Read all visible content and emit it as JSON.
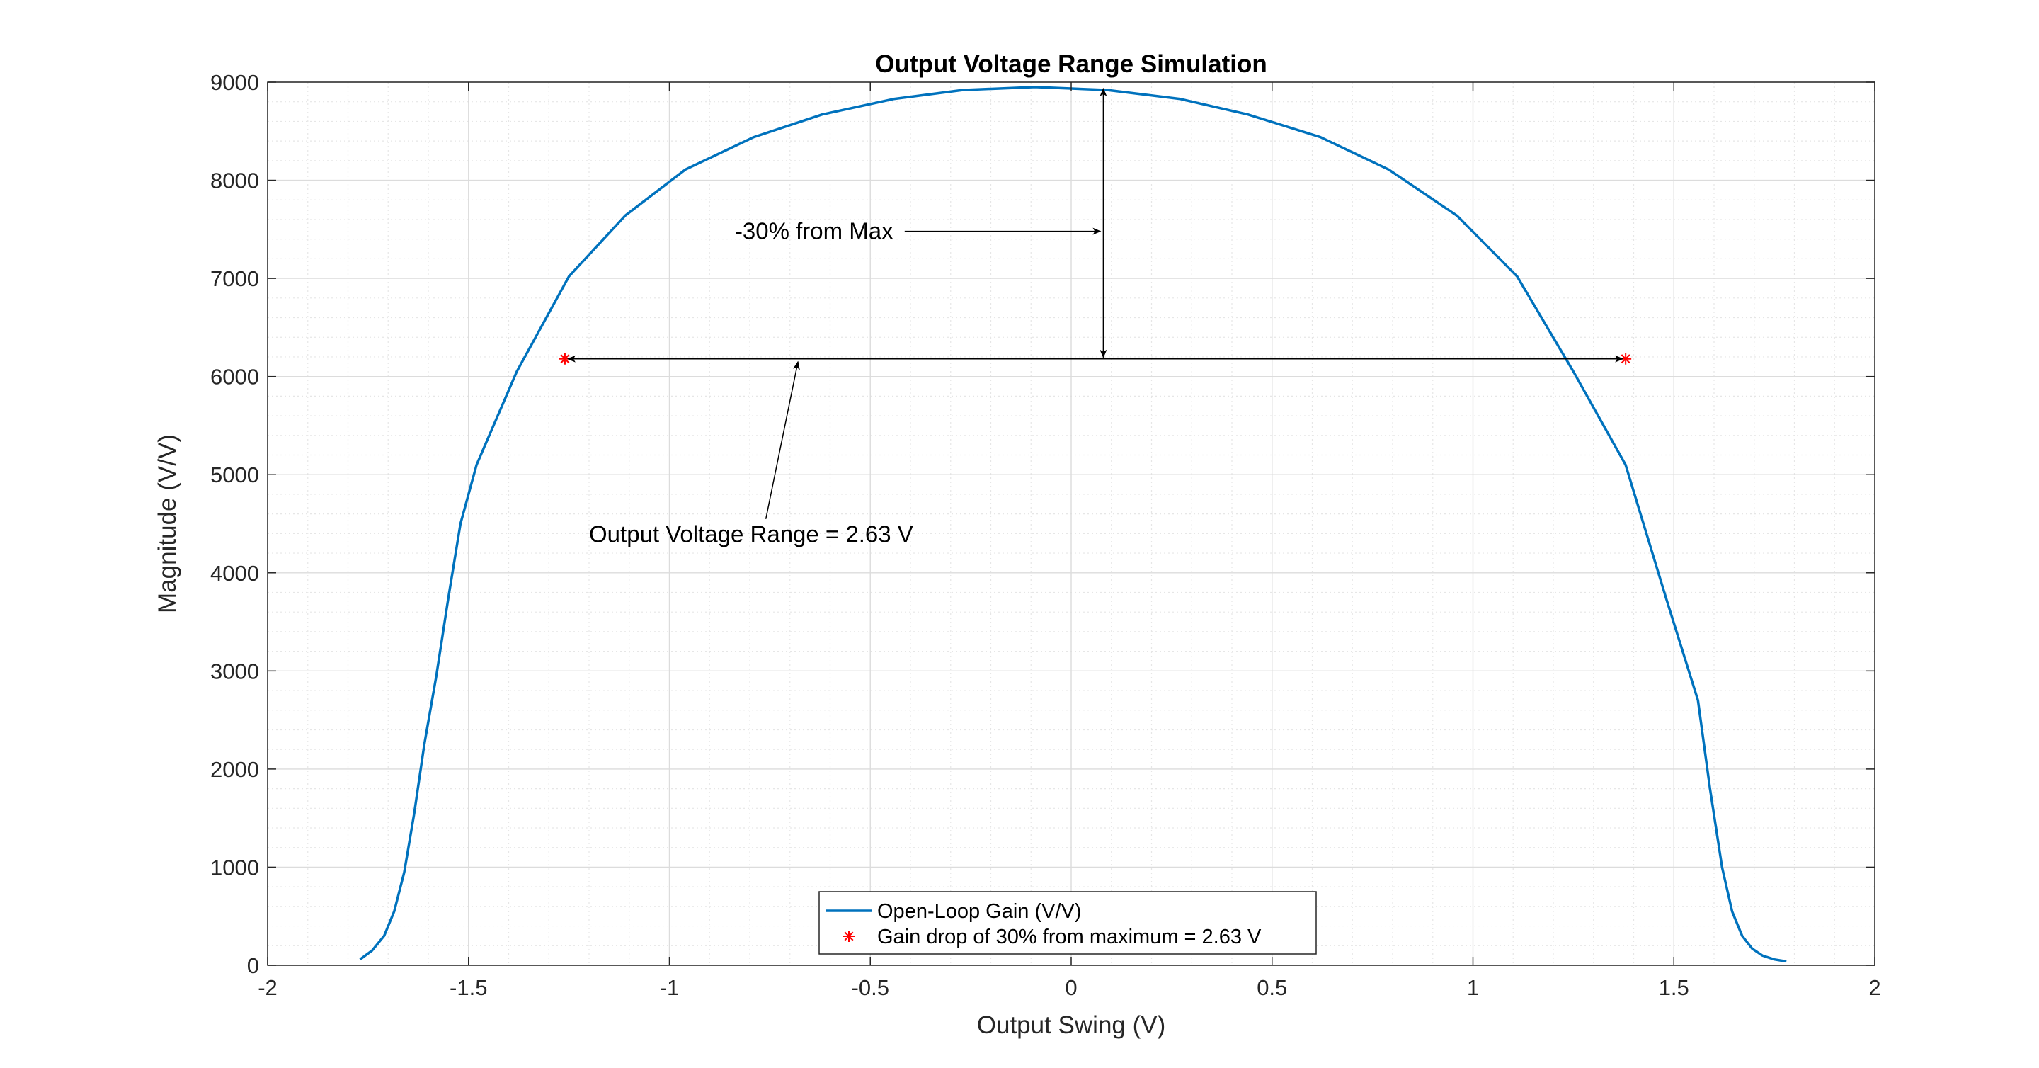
{
  "chart_data": {
    "type": "line",
    "title": "Output Voltage Range Simulation",
    "xlabel": "Output Swing (V)",
    "ylabel": "Magnitude (V/V)",
    "xlim": [
      -2,
      2
    ],
    "ylim": [
      0,
      9000
    ],
    "xticks": [
      -2,
      -1.5,
      -1,
      -0.5,
      0,
      0.5,
      1,
      1.5,
      2
    ],
    "xtick_labels": [
      "-2",
      "-1.5",
      "-1",
      "-0.5",
      "0",
      "0.5",
      "1",
      "1.5",
      "2"
    ],
    "yticks": [
      0,
      1000,
      2000,
      3000,
      4000,
      5000,
      6000,
      7000,
      8000,
      9000
    ],
    "ytick_labels": [
      "0",
      "1000",
      "2000",
      "3000",
      "4000",
      "5000",
      "6000",
      "7000",
      "8000",
      "9000"
    ],
    "grid": true,
    "minor_grid": true,
    "legend_position": "bottom-center",
    "series": [
      {
        "name": "Open-Loop Gain (V/V)",
        "color": "#0072BD",
        "marker": "none",
        "x": [
          -1.77,
          -1.74,
          -1.71,
          -1.685,
          -1.66,
          -1.635,
          -1.61,
          -1.58,
          -1.55,
          -1.52,
          -1.48,
          -1.38,
          -1.25,
          -1.11,
          -0.96,
          -0.79,
          -0.62,
          -0.44,
          -0.27,
          -0.09,
          0.09,
          0.27,
          0.44,
          0.62,
          0.79,
          0.96,
          1.11,
          1.25,
          1.38,
          1.48,
          1.56,
          1.59,
          1.62,
          1.645,
          1.67,
          1.695,
          1.72,
          1.75,
          1.78
        ],
        "y": [
          60,
          150,
          300,
          550,
          950,
          1550,
          2250,
          2950,
          3750,
          4500,
          5100,
          6050,
          7020,
          7640,
          8110,
          8440,
          8670,
          8830,
          8920,
          8950,
          8920,
          8830,
          8670,
          8440,
          8110,
          7640,
          7020,
          6050,
          5100,
          3750,
          2700,
          1800,
          1000,
          550,
          300,
          170,
          100,
          60,
          40
        ]
      },
      {
        "name": "Gain drop of 30% from maximum = 2.63 V",
        "color": "#FF0000",
        "marker": "asterisk",
        "x": [
          -1.26,
          1.38
        ],
        "y": [
          6180,
          6180
        ]
      }
    ],
    "annotations": [
      {
        "text": "-30% from Max",
        "x": -0.64,
        "y": 7480,
        "arrow_to": [
          0.08,
          7480
        ]
      },
      {
        "text": "Output Voltage Range = 2.63 V",
        "x": -1.2,
        "y": 4390,
        "arrow_to": [
          -0.68,
          6180
        ]
      }
    ]
  }
}
